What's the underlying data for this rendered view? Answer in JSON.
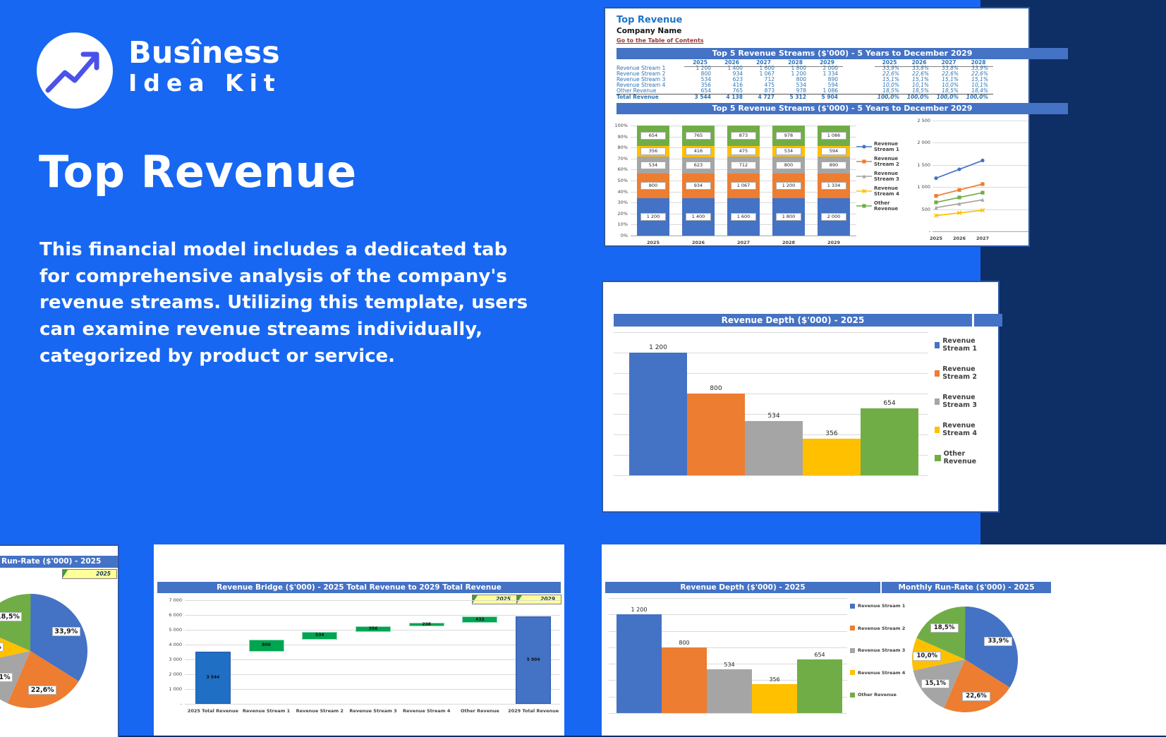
{
  "brand": {
    "line1": "Busîness",
    "line2": "Idea Kit"
  },
  "hero": {
    "title": "Top Revenue",
    "paragraph": "This financial model includes a dedicated tab for comprehensive analysis of the company's revenue streams. Utilizing this template, users can examine revenue streams individually, categorized by product or service."
  },
  "colors": {
    "pageBg": "#1767F2",
    "panelBorder": "#2B57A8",
    "headerBar": "#4472C4",
    "rs1": "#4472C4",
    "rs2": "#ED7D31",
    "rs3": "#A5A5A5",
    "rs4": "#FFC000",
    "other": "#70AD47",
    "bridgeUp": "#00A550",
    "bridgeUpBorder": "#8FD9B6",
    "bridgeTotalStart": "#1F6FC4",
    "bridgeTotalEnd": "#4472C4",
    "selectorBg": "#FFFF99",
    "linkMaroon": "#963634",
    "sheetBlue": "#2E74B5"
  },
  "sheet": {
    "doc_title": "Top Revenue",
    "company": "Company Name",
    "toc_link": "Go to the Table of Contents",
    "section_title": "Top 5 Revenue Streams ($'000) - 5 Years to December 2029",
    "years": [
      "2025",
      "2026",
      "2027",
      "2028",
      "2029"
    ],
    "pct_years": [
      "2025",
      "2026",
      "2027",
      "2028"
    ],
    "rows": [
      {
        "label": "Revenue Stream 1",
        "values": [
          "1 200",
          "1 400",
          "1 600",
          "1 800",
          "2 000"
        ],
        "pcts": [
          "33,9%",
          "33,8%",
          "33,8%",
          "33,9%"
        ]
      },
      {
        "label": "Revenue Stream 2",
        "values": [
          "800",
          "934",
          "1 067",
          "1 200",
          "1 334"
        ],
        "pcts": [
          "22,6%",
          "22,6%",
          "22,6%",
          "22,6%"
        ]
      },
      {
        "label": "Revenue Stream 3",
        "values": [
          "534",
          "623",
          "712",
          "800",
          "890"
        ],
        "pcts": [
          "15,1%",
          "15,1%",
          "15,1%",
          "15,1%"
        ]
      },
      {
        "label": "Revenue Stream 4",
        "values": [
          "356",
          "416",
          "475",
          "534",
          "594"
        ],
        "pcts": [
          "10,0%",
          "10,1%",
          "10,0%",
          "10,1%"
        ]
      },
      {
        "label": "Other Revenue",
        "values": [
          "654",
          "765",
          "873",
          "978",
          "1 086"
        ],
        "pcts": [
          "18,5%",
          "18,5%",
          "18,5%",
          "18,4%"
        ]
      }
    ],
    "total": {
      "label": "Total Revenue",
      "values": [
        "3 544",
        "4 138",
        "4 727",
        "5 312",
        "5 904"
      ],
      "pcts": [
        "100,0%",
        "100,0%",
        "100,0%",
        "100,0%"
      ]
    }
  },
  "panels": {
    "depth_title": "Revenue Depth ($'000) - 2025",
    "runrate_title": "Monthly Run-Rate ($'000) - 2025",
    "runrate_title_cut": "Run-Rate ($'000) - 2025",
    "bridge_title": "Revenue Bridge ($'000) - 2025 Total Revenue to 2029 Total Revenue",
    "selector_2025": "2025",
    "selector_2029": "2029",
    "legend": [
      "Revenue Stream 1",
      "Revenue Stream 2",
      "Revenue Stream 3",
      "Revenue Stream 4",
      "Other Revenue"
    ]
  },
  "chart_data": [
    {
      "id": "top5-streams-stacked",
      "type": "bar",
      "subtype": "stacked-100pct",
      "title": "Top 5 Revenue Streams ($'000) - 5 Years to December 2029",
      "categories": [
        "2025",
        "2026",
        "2027",
        "2028",
        "2029"
      ],
      "series": [
        {
          "name": "Revenue Stream 1",
          "color_key": "rs1",
          "marker": "circle",
          "values": [
            1200,
            1400,
            1600,
            1800,
            2000
          ]
        },
        {
          "name": "Revenue Stream 2",
          "color_key": "rs2",
          "marker": "square",
          "values": [
            800,
            934,
            1067,
            1200,
            1334
          ]
        },
        {
          "name": "Revenue Stream 3",
          "color_key": "rs3",
          "marker": "triangle",
          "values": [
            534,
            623,
            712,
            800,
            890
          ]
        },
        {
          "name": "Revenue Stream 4",
          "color_key": "rs4",
          "marker": "x",
          "values": [
            356,
            416,
            475,
            534,
            594
          ]
        },
        {
          "name": "Other Revenue",
          "color_key": "other",
          "marker": "square",
          "values": [
            654,
            765,
            873,
            978,
            1086
          ]
        }
      ],
      "yticks": [
        "0%",
        "10%",
        "20%",
        "30%",
        "40%",
        "50%",
        "60%",
        "70%",
        "80%",
        "90%",
        "100%"
      ],
      "legend_position": "right",
      "grid": true
    },
    {
      "id": "top5-streams-trend",
      "type": "line",
      "categories": [
        "2025",
        "2026",
        "2027"
      ],
      "ylim": [
        0,
        2500
      ],
      "yticks": [
        500,
        1000,
        1500,
        2000,
        2500
      ],
      "series": [
        {
          "name": "Revenue Stream 1",
          "color_key": "rs1",
          "marker": "circle",
          "values": [
            1200,
            1400,
            1600
          ]
        },
        {
          "name": "Revenue Stream 2",
          "color_key": "rs2",
          "marker": "square",
          "values": [
            800,
            934,
            1067
          ]
        },
        {
          "name": "Revenue Stream 3",
          "color_key": "rs3",
          "marker": "triangle",
          "values": [
            534,
            623,
            712
          ]
        },
        {
          "name": "Revenue Stream 4",
          "color_key": "rs4",
          "marker": "x",
          "values": [
            356,
            416,
            475
          ]
        },
        {
          "name": "Other Revenue",
          "color_key": "other",
          "marker": "square",
          "values": [
            654,
            765,
            873
          ]
        }
      ],
      "grid": true
    },
    {
      "id": "revenue-depth-2025",
      "type": "bar",
      "title": "Revenue Depth ($'000) - 2025",
      "categories": [
        "Revenue Stream 1",
        "Revenue Stream 2",
        "Revenue Stream 3",
        "Revenue Stream 4",
        "Other Revenue"
      ],
      "values": [
        1200,
        800,
        534,
        356,
        654
      ],
      "series_colors": [
        "rs1",
        "rs2",
        "rs3",
        "rs4",
        "other"
      ],
      "ylim": [
        0,
        1400
      ],
      "legend_position": "right",
      "grid": true
    },
    {
      "id": "monthly-run-rate-2025",
      "type": "pie",
      "title": "Monthly Run-Rate ($'000) - 2025",
      "slices": [
        {
          "name": "Revenue Stream 1",
          "color_key": "rs1",
          "pct": 33.9
        },
        {
          "name": "Revenue Stream 2",
          "color_key": "rs2",
          "pct": 22.6
        },
        {
          "name": "Revenue Stream 3",
          "color_key": "rs3",
          "pct": 15.1
        },
        {
          "name": "Revenue Stream 4",
          "color_key": "rs4",
          "pct": 10.0
        },
        {
          "name": "Other Revenue",
          "color_key": "other",
          "pct": 18.5
        }
      ]
    },
    {
      "id": "revenue-bridge",
      "type": "waterfall",
      "title": "Revenue Bridge ($'000) - 2025 Total Revenue to 2029 Total Revenue",
      "ylim": [
        0,
        7000
      ],
      "yticks": [
        "7 000",
        "6 000",
        "5 000",
        "4 000",
        "3 000",
        "2 000",
        "1 000",
        "-"
      ],
      "steps": [
        {
          "label": "2025 Total Revenue",
          "kind": "total",
          "value": 3544
        },
        {
          "label": "Revenue Stream 1",
          "kind": "increase",
          "value": 800
        },
        {
          "label": "Revenue Stream 2",
          "kind": "increase",
          "value": 534
        },
        {
          "label": "Revenue Stream 3",
          "kind": "increase",
          "value": 356
        },
        {
          "label": "Revenue Stream 4",
          "kind": "increase",
          "value": 238
        },
        {
          "label": "Other Revenue",
          "kind": "increase",
          "value": 432
        },
        {
          "label": "2029 Total Revenue",
          "kind": "total",
          "value": 5904
        }
      ]
    }
  ]
}
